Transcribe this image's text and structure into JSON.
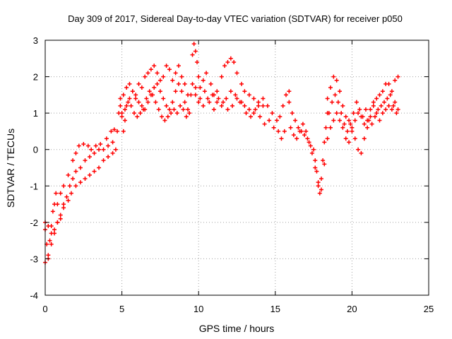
{
  "chart_data": {
    "type": "scatter",
    "title": "Day 309 of 2017, Sidereal Day-to-day VTEC variation (SDTVAR) for receiver p050",
    "xlabel": "GPS time / hours",
    "ylabel": "SDTVAR / TECUs",
    "xlim": [
      0,
      25
    ],
    "ylim": [
      -4,
      3
    ],
    "x_ticks": [
      "0",
      "5",
      "10",
      "15",
      "20",
      "25"
    ],
    "y_ticks": [
      "-4",
      "-3",
      "-2",
      "-1",
      "0",
      "1",
      "2",
      "3"
    ],
    "grid": true,
    "marker": "+",
    "series": [
      {
        "name": "SDTVAR",
        "color": "#ff0000",
        "points": [
          [
            0.0,
            -2.2
          ],
          [
            0.1,
            -2.6
          ],
          [
            0.2,
            -3.0
          ],
          [
            0.3,
            -2.5
          ],
          [
            0.4,
            -2.1
          ],
          [
            0.5,
            -1.7
          ],
          [
            0.6,
            -1.5
          ],
          [
            0.7,
            -1.2
          ],
          [
            0.8,
            -1.5
          ],
          [
            1.0,
            -1.2
          ],
          [
            1.2,
            -1.0
          ],
          [
            1.5,
            -0.7
          ],
          [
            1.8,
            -0.3
          ],
          [
            2.0,
            -0.1
          ],
          [
            2.2,
            0.1
          ],
          [
            2.5,
            0.15
          ],
          [
            2.8,
            0.1
          ],
          [
            3.0,
            0.0
          ],
          [
            3.3,
            0.1
          ],
          [
            3.6,
            0.15
          ],
          [
            4.0,
            0.3
          ],
          [
            4.3,
            0.5
          ],
          [
            4.5,
            0.55
          ],
          [
            0.0,
            -3.1
          ],
          [
            0.2,
            -2.9
          ],
          [
            0.4,
            -2.6
          ],
          [
            0.6,
            -2.3
          ],
          [
            0.8,
            -2.0
          ],
          [
            1.0,
            -1.8
          ],
          [
            1.2,
            -1.5
          ],
          [
            1.4,
            -1.3
          ],
          [
            1.6,
            -1.0
          ],
          [
            1.8,
            -0.8
          ],
          [
            2.0,
            -0.6
          ],
          [
            2.3,
            -0.5
          ],
          [
            2.6,
            -0.3
          ],
          [
            2.9,
            -0.2
          ],
          [
            3.2,
            -0.1
          ],
          [
            3.5,
            0.0
          ],
          [
            3.8,
            0.0
          ],
          [
            4.1,
            0.1
          ],
          [
            4.4,
            0.2
          ],
          [
            0.0,
            -2.0
          ],
          [
            0.2,
            -2.1
          ],
          [
            0.4,
            -2.3
          ],
          [
            0.6,
            -2.2
          ],
          [
            0.8,
            -2.0
          ],
          [
            1.0,
            -1.9
          ],
          [
            1.2,
            -1.6
          ],
          [
            1.5,
            -1.4
          ],
          [
            1.7,
            -1.2
          ],
          [
            2.0,
            -1.0
          ],
          [
            2.3,
            -0.9
          ],
          [
            2.6,
            -0.8
          ],
          [
            2.9,
            -0.7
          ],
          [
            3.2,
            -0.6
          ],
          [
            3.5,
            -0.5
          ],
          [
            3.8,
            -0.3
          ],
          [
            4.1,
            -0.2
          ],
          [
            4.4,
            -0.1
          ],
          [
            4.6,
            0.0
          ],
          [
            4.7,
            0.5
          ],
          [
            4.8,
            1.0
          ],
          [
            4.9,
            1.2
          ],
          [
            5.0,
            0.9
          ],
          [
            5.1,
            0.5
          ],
          [
            5.2,
            0.8
          ],
          [
            5.3,
            1.2
          ],
          [
            5.5,
            1.4
          ],
          [
            5.7,
            1.6
          ],
          [
            5.9,
            1.5
          ],
          [
            6.1,
            1.8
          ],
          [
            6.3,
            1.7
          ],
          [
            6.5,
            2.0
          ],
          [
            6.7,
            2.1
          ],
          [
            6.9,
            2.2
          ],
          [
            7.1,
            2.3
          ],
          [
            7.3,
            2.1
          ],
          [
            7.5,
            1.9
          ],
          [
            7.7,
            2.0
          ],
          [
            7.9,
            2.3
          ],
          [
            8.1,
            2.2
          ],
          [
            8.3,
            1.9
          ],
          [
            8.5,
            2.1
          ],
          [
            8.7,
            2.3
          ],
          [
            8.9,
            2.0
          ],
          [
            9.1,
            1.8
          ],
          [
            9.3,
            1.5
          ],
          [
            4.9,
            1.4
          ],
          [
            5.1,
            1.5
          ],
          [
            5.3,
            1.7
          ],
          [
            5.5,
            1.8
          ],
          [
            5.7,
            1.6
          ],
          [
            5.9,
            1.4
          ],
          [
            6.1,
            1.3
          ],
          [
            6.3,
            1.2
          ],
          [
            6.5,
            1.1
          ],
          [
            6.7,
            1.3
          ],
          [
            6.9,
            1.5
          ],
          [
            7.1,
            1.7
          ],
          [
            7.3,
            1.8
          ],
          [
            7.5,
            1.6
          ],
          [
            7.7,
            1.4
          ],
          [
            7.9,
            1.2
          ],
          [
            8.1,
            1.1
          ],
          [
            8.3,
            1.3
          ],
          [
            8.5,
            1.6
          ],
          [
            8.7,
            1.8
          ],
          [
            8.9,
            1.6
          ],
          [
            9.1,
            1.3
          ],
          [
            9.3,
            1.1
          ],
          [
            5.0,
            1.0
          ],
          [
            5.2,
            1.1
          ],
          [
            5.4,
            1.3
          ],
          [
            5.6,
            1.2
          ],
          [
            5.8,
            1.0
          ],
          [
            6.0,
            0.9
          ],
          [
            6.2,
            1.0
          ],
          [
            6.4,
            1.1
          ],
          [
            6.6,
            1.4
          ],
          [
            6.8,
            1.6
          ],
          [
            7.0,
            1.5
          ],
          [
            7.2,
            1.3
          ],
          [
            7.4,
            1.1
          ],
          [
            7.6,
            0.9
          ],
          [
            7.8,
            0.8
          ],
          [
            8.0,
            0.9
          ],
          [
            8.2,
            1.0
          ],
          [
            8.4,
            1.1
          ],
          [
            8.6,
            1.0
          ],
          [
            8.8,
            1.2
          ],
          [
            9.0,
            1.1
          ],
          [
            9.2,
            0.9
          ],
          [
            9.4,
            1.0
          ],
          [
            9.6,
            2.6
          ],
          [
            9.7,
            2.9
          ],
          [
            9.8,
            2.7
          ],
          [
            9.9,
            2.4
          ],
          [
            10.0,
            2.0
          ],
          [
            10.1,
            1.7
          ],
          [
            10.3,
            1.9
          ],
          [
            10.5,
            2.1
          ],
          [
            10.8,
            1.8
          ],
          [
            11.0,
            1.5
          ],
          [
            11.2,
            1.6
          ],
          [
            11.5,
            2.0
          ],
          [
            11.7,
            2.3
          ],
          [
            11.9,
            2.4
          ],
          [
            12.1,
            2.5
          ],
          [
            12.3,
            2.4
          ],
          [
            12.5,
            2.1
          ],
          [
            12.8,
            1.8
          ],
          [
            13.0,
            1.6
          ],
          [
            13.3,
            1.5
          ],
          [
            13.6,
            1.4
          ],
          [
            13.9,
            1.3
          ],
          [
            14.2,
            1.2
          ],
          [
            9.6,
            1.8
          ],
          [
            9.8,
            1.5
          ],
          [
            10.0,
            1.3
          ],
          [
            10.3,
            1.2
          ],
          [
            10.6,
            1.4
          ],
          [
            10.9,
            1.5
          ],
          [
            11.2,
            1.3
          ],
          [
            11.5,
            1.2
          ],
          [
            11.8,
            1.4
          ],
          [
            12.1,
            1.6
          ],
          [
            12.4,
            1.5
          ],
          [
            12.7,
            1.3
          ],
          [
            13.0,
            1.2
          ],
          [
            13.3,
            1.1
          ],
          [
            13.6,
            1.0
          ],
          [
            13.9,
            1.2
          ],
          [
            14.2,
            1.4
          ],
          [
            14.5,
            1.2
          ],
          [
            14.8,
            1.0
          ],
          [
            15.1,
            0.8
          ],
          [
            15.3,
            0.9
          ],
          [
            15.5,
            1.2
          ],
          [
            15.7,
            1.5
          ],
          [
            15.9,
            1.6
          ],
          [
            9.5,
            1.5
          ],
          [
            9.8,
            1.7
          ],
          [
            10.1,
            1.4
          ],
          [
            10.4,
            1.6
          ],
          [
            10.7,
            1.3
          ],
          [
            11.0,
            1.1
          ],
          [
            11.3,
            1.4
          ],
          [
            11.6,
            1.3
          ],
          [
            11.9,
            1.1
          ],
          [
            12.2,
            1.2
          ],
          [
            12.5,
            1.4
          ],
          [
            12.8,
            1.3
          ],
          [
            13.1,
            1.0
          ],
          [
            13.4,
            0.9
          ],
          [
            13.7,
            1.1
          ],
          [
            14.0,
            0.9
          ],
          [
            14.3,
            0.7
          ],
          [
            14.6,
            0.8
          ],
          [
            14.9,
            0.6
          ],
          [
            15.2,
            0.5
          ],
          [
            15.4,
            0.3
          ],
          [
            15.6,
            0.5
          ],
          [
            15.9,
            1.3
          ],
          [
            16.1,
            1.0
          ],
          [
            16.3,
            0.8
          ],
          [
            16.5,
            0.6
          ],
          [
            16.7,
            0.5
          ],
          [
            16.9,
            0.4
          ],
          [
            17.1,
            0.3
          ],
          [
            17.3,
            0.1
          ],
          [
            17.5,
            0.0
          ],
          [
            17.6,
            -0.3
          ],
          [
            17.7,
            -0.6
          ],
          [
            17.8,
            -0.9
          ],
          [
            17.9,
            -1.2
          ],
          [
            18.0,
            -0.8
          ],
          [
            18.1,
            -0.3
          ],
          [
            18.2,
            0.2
          ],
          [
            18.3,
            0.6
          ],
          [
            18.4,
            1.0
          ],
          [
            16.0,
            0.6
          ],
          [
            16.2,
            0.4
          ],
          [
            16.4,
            0.3
          ],
          [
            16.6,
            0.5
          ],
          [
            16.8,
            0.7
          ],
          [
            17.0,
            0.5
          ],
          [
            17.2,
            0.2
          ],
          [
            17.4,
            -0.1
          ],
          [
            17.6,
            -0.5
          ],
          [
            17.8,
            -1.0
          ],
          [
            18.0,
            -1.1
          ],
          [
            18.2,
            -0.4
          ],
          [
            18.4,
            0.3
          ],
          [
            18.4,
            1.4
          ],
          [
            18.6,
            1.7
          ],
          [
            18.8,
            2.0
          ],
          [
            19.0,
            1.9
          ],
          [
            19.2,
            1.6
          ],
          [
            19.4,
            1.2
          ],
          [
            19.6,
            0.9
          ],
          [
            19.8,
            0.8
          ],
          [
            20.0,
            0.6
          ],
          [
            20.2,
            0.3
          ],
          [
            20.4,
            0.0
          ],
          [
            20.6,
            -0.1
          ],
          [
            20.8,
            0.3
          ],
          [
            21.0,
            0.8
          ],
          [
            21.2,
            1.1
          ],
          [
            21.4,
            1.3
          ],
          [
            21.6,
            1.4
          ],
          [
            21.8,
            1.5
          ],
          [
            22.0,
            1.6
          ],
          [
            22.2,
            1.8
          ],
          [
            22.4,
            1.8
          ],
          [
            22.6,
            1.6
          ],
          [
            22.8,
            1.9
          ],
          [
            23.0,
            2.0
          ],
          [
            18.5,
            1.0
          ],
          [
            18.7,
            1.3
          ],
          [
            18.9,
            1.5
          ],
          [
            19.1,
            1.3
          ],
          [
            19.3,
            1.0
          ],
          [
            19.5,
            0.7
          ],
          [
            19.7,
            0.5
          ],
          [
            19.9,
            0.7
          ],
          [
            20.1,
            1.0
          ],
          [
            20.3,
            1.3
          ],
          [
            20.5,
            1.1
          ],
          [
            20.7,
            0.9
          ],
          [
            20.9,
            1.1
          ],
          [
            21.1,
            0.8
          ],
          [
            21.3,
            0.7
          ],
          [
            21.5,
            0.9
          ],
          [
            21.7,
            1.1
          ],
          [
            21.9,
            1.2
          ],
          [
            22.1,
            1.3
          ],
          [
            22.3,
            1.4
          ],
          [
            22.5,
            1.5
          ],
          [
            22.7,
            1.2
          ],
          [
            22.9,
            1.0
          ],
          [
            18.6,
            0.6
          ],
          [
            18.8,
            0.8
          ],
          [
            19.0,
            1.0
          ],
          [
            19.2,
            0.8
          ],
          [
            19.4,
            0.6
          ],
          [
            19.6,
            0.3
          ],
          [
            19.8,
            0.2
          ],
          [
            20.0,
            0.5
          ],
          [
            20.2,
            0.8
          ],
          [
            20.4,
            1.0
          ],
          [
            20.6,
            0.9
          ],
          [
            20.8,
            0.7
          ],
          [
            21.0,
            0.6
          ],
          [
            21.2,
            0.9
          ],
          [
            21.4,
            1.2
          ],
          [
            21.6,
            1.0
          ],
          [
            21.8,
            0.8
          ],
          [
            22.0,
            1.0
          ],
          [
            22.2,
            1.1
          ],
          [
            22.4,
            1.2
          ],
          [
            22.6,
            1.1
          ],
          [
            22.8,
            1.3
          ],
          [
            23.0,
            1.1
          ]
        ]
      }
    ]
  }
}
